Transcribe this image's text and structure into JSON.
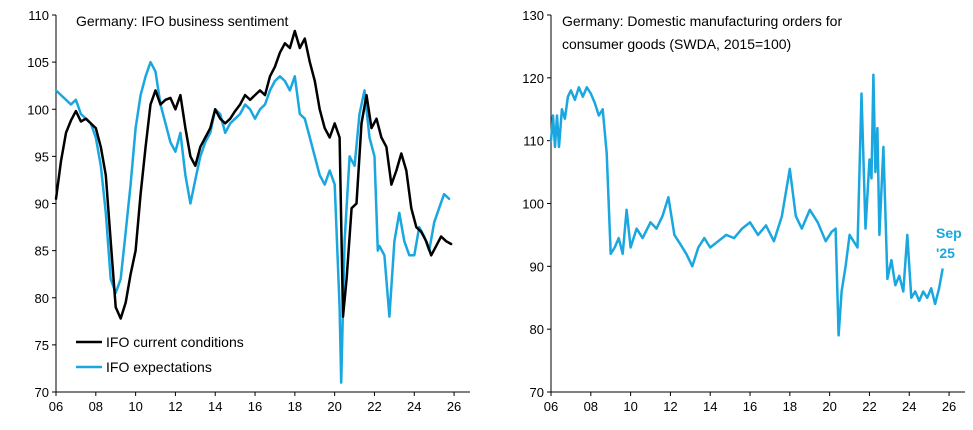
{
  "colors": {
    "black_series": "#000000",
    "blue_series": "#1aa7e0",
    "axis": "#000000"
  },
  "chart_data": [
    {
      "type": "line",
      "title": "Germany: IFO business sentiment",
      "xlabel": "",
      "ylabel": "",
      "xlim": [
        2006,
        2026.8
      ],
      "ylim": [
        70,
        110
      ],
      "x_ticks": [
        2006,
        2008,
        2010,
        2012,
        2014,
        2016,
        2018,
        2020,
        2022,
        2024,
        2026
      ],
      "x_tick_labels": [
        "06",
        "08",
        "10",
        "12",
        "14",
        "16",
        "18",
        "20",
        "22",
        "24",
        "26"
      ],
      "y_ticks": [
        70,
        75,
        80,
        85,
        90,
        95,
        100,
        105,
        110
      ],
      "y_tick_labels": [
        "70",
        "75",
        "80",
        "85",
        "90",
        "95",
        "100",
        "105",
        "110"
      ],
      "legend_position": "bottom-left",
      "series": [
        {
          "name": "IFO current conditions",
          "color": "#000000",
          "x": [
            2006.0,
            2006.25,
            2006.5,
            2006.75,
            2007.0,
            2007.25,
            2007.5,
            2007.75,
            2008.0,
            2008.25,
            2008.5,
            2008.75,
            2009.0,
            2009.25,
            2009.5,
            2009.75,
            2010.0,
            2010.25,
            2010.5,
            2010.75,
            2011.0,
            2011.25,
            2011.5,
            2011.75,
            2012.0,
            2012.25,
            2012.5,
            2012.75,
            2013.0,
            2013.25,
            2013.5,
            2013.75,
            2014.0,
            2014.25,
            2014.5,
            2014.75,
            2015.0,
            2015.25,
            2015.5,
            2015.75,
            2016.0,
            2016.25,
            2016.5,
            2016.75,
            2017.0,
            2017.25,
            2017.5,
            2017.75,
            2018.0,
            2018.25,
            2018.5,
            2018.75,
            2019.0,
            2019.25,
            2019.5,
            2019.75,
            2020.0,
            2020.25,
            2020.42,
            2020.6,
            2020.85,
            2021.1,
            2021.35,
            2021.6,
            2021.85,
            2022.1,
            2022.35,
            2022.6,
            2022.85,
            2023.1,
            2023.35,
            2023.6,
            2023.85,
            2024.1,
            2024.35,
            2024.6,
            2024.85,
            2025.1,
            2025.35,
            2025.6,
            2025.85
          ],
          "values": [
            90.5,
            94.5,
            97.5,
            98.8,
            99.8,
            98.7,
            99.0,
            98.5,
            98.0,
            96.0,
            93.0,
            86.0,
            79.0,
            77.8,
            79.5,
            82.5,
            85.0,
            91.0,
            96.0,
            100.5,
            102.0,
            100.5,
            101.0,
            101.2,
            100.0,
            101.5,
            98.0,
            95.0,
            94.0,
            96.0,
            97.0,
            98.0,
            100.0,
            99.0,
            98.5,
            99.0,
            99.8,
            100.5,
            101.5,
            101.0,
            101.5,
            102.0,
            101.5,
            103.5,
            104.5,
            106.0,
            107.0,
            106.5,
            108.3,
            106.5,
            107.5,
            105.0,
            103.0,
            100.0,
            98.0,
            97.0,
            98.5,
            97.0,
            78.0,
            82.0,
            89.5,
            90.0,
            98.5,
            101.5,
            98.0,
            99.0,
            97.0,
            96.0,
            92.0,
            93.5,
            95.3,
            93.5,
            89.5,
            87.5,
            87.0,
            86.0,
            84.5,
            85.5,
            86.5,
            86.0,
            85.7
          ]
        },
        {
          "name": "IFO expectations",
          "color": "#1aa7e0",
          "x": [
            2006.0,
            2006.25,
            2006.5,
            2006.75,
            2007.0,
            2007.25,
            2007.5,
            2007.75,
            2008.0,
            2008.25,
            2008.5,
            2008.75,
            2009.0,
            2009.25,
            2009.5,
            2009.75,
            2010.0,
            2010.25,
            2010.5,
            2010.75,
            2011.0,
            2011.25,
            2011.5,
            2011.75,
            2012.0,
            2012.25,
            2012.5,
            2012.75,
            2013.0,
            2013.25,
            2013.5,
            2013.75,
            2014.0,
            2014.25,
            2014.5,
            2014.75,
            2015.0,
            2015.25,
            2015.5,
            2015.75,
            2016.0,
            2016.25,
            2016.5,
            2016.75,
            2017.0,
            2017.25,
            2017.5,
            2017.75,
            2018.0,
            2018.25,
            2018.5,
            2018.75,
            2019.0,
            2019.25,
            2019.5,
            2019.75,
            2020.0,
            2020.25,
            2020.33,
            2020.5,
            2020.75,
            2021.0,
            2021.25,
            2021.5,
            2021.75,
            2022.0,
            2022.17,
            2022.25,
            2022.5,
            2022.75,
            2023.0,
            2023.25,
            2023.5,
            2023.75,
            2024.0,
            2024.25,
            2024.5,
            2024.75,
            2025.0,
            2025.25,
            2025.5,
            2025.75
          ],
          "values": [
            102.0,
            101.5,
            101.0,
            100.5,
            101.0,
            99.5,
            99.0,
            98.5,
            97.0,
            94.0,
            89.0,
            82.0,
            80.5,
            82.0,
            87.0,
            92.0,
            98.0,
            101.5,
            103.5,
            105.0,
            104.0,
            100.5,
            98.5,
            96.5,
            95.5,
            97.5,
            93.0,
            90.0,
            92.5,
            95.0,
            96.5,
            97.5,
            100.0,
            99.5,
            97.5,
            98.5,
            99.0,
            99.5,
            100.5,
            100.0,
            99.0,
            100.0,
            100.5,
            102.0,
            103.0,
            103.5,
            103.0,
            102.0,
            103.5,
            99.5,
            99.0,
            97.0,
            95.0,
            93.0,
            92.0,
            93.5,
            92.0,
            79.0,
            71.0,
            86.0,
            95.0,
            94.0,
            99.5,
            102.0,
            97.0,
            95.0,
            85.0,
            85.5,
            84.5,
            78.0,
            86.0,
            89.0,
            86.0,
            84.5,
            84.5,
            87.5,
            86.5,
            85.0,
            88.0,
            89.5,
            91.0,
            90.5
          ]
        }
      ]
    },
    {
      "type": "line",
      "title": "Germany: Domestic manufacturing orders for consumer goods (SWDA, 2015=100)",
      "title_lines": [
        "Germany: Domestic manufacturing orders for",
        "consumer goods (SWDA, 2015=100)"
      ],
      "xlabel": "",
      "ylabel": "",
      "xlim": [
        2006,
        2026.8
      ],
      "ylim": [
        70,
        130
      ],
      "x_ticks": [
        2006,
        2008,
        2010,
        2012,
        2014,
        2016,
        2018,
        2020,
        2022,
        2024,
        2026
      ],
      "x_tick_labels": [
        "06",
        "08",
        "10",
        "12",
        "14",
        "16",
        "18",
        "20",
        "22",
        "24",
        "26"
      ],
      "y_ticks": [
        70,
        80,
        90,
        100,
        110,
        120,
        130
      ],
      "y_tick_labels": [
        "70",
        "80",
        "90",
        "100",
        "110",
        "120",
        "130"
      ],
      "annotation": {
        "lines": [
          "Sep",
          "'25"
        ],
        "color": "#1aa7e0"
      },
      "series": [
        {
          "name": "Domestic manufacturing orders for consumer goods",
          "color": "#1aa7e0",
          "x": [
            2006.0,
            2006.1,
            2006.2,
            2006.3,
            2006.4,
            2006.55,
            2006.7,
            2006.85,
            2007.0,
            2007.2,
            2007.4,
            2007.6,
            2007.8,
            2008.0,
            2008.2,
            2008.4,
            2008.6,
            2008.8,
            2009.0,
            2009.2,
            2009.4,
            2009.6,
            2009.8,
            2010.0,
            2010.3,
            2010.6,
            2011.0,
            2011.3,
            2011.6,
            2011.9,
            2012.2,
            2012.5,
            2012.8,
            2013.1,
            2013.4,
            2013.7,
            2014.0,
            2014.4,
            2014.8,
            2015.2,
            2015.6,
            2016.0,
            2016.4,
            2016.8,
            2017.2,
            2017.6,
            2018.0,
            2018.3,
            2018.6,
            2019.0,
            2019.4,
            2019.8,
            2020.1,
            2020.3,
            2020.45,
            2020.6,
            2020.8,
            2021.0,
            2021.2,
            2021.4,
            2021.6,
            2021.8,
            2022.0,
            2022.1,
            2022.2,
            2022.3,
            2022.4,
            2022.5,
            2022.7,
            2022.9,
            2023.1,
            2023.3,
            2023.5,
            2023.7,
            2023.9,
            2024.1,
            2024.3,
            2024.5,
            2024.7,
            2024.9,
            2025.1,
            2025.3,
            2025.5,
            2025.67
          ],
          "values": [
            110.0,
            114.0,
            109.0,
            114.0,
            109.0,
            115.0,
            113.5,
            117.0,
            118.0,
            116.5,
            118.5,
            117.0,
            118.5,
            117.5,
            116.0,
            114.0,
            115.0,
            108.0,
            92.0,
            93.0,
            94.5,
            92.0,
            99.0,
            93.0,
            96.0,
            94.5,
            97.0,
            96.0,
            98.0,
            101.0,
            95.0,
            93.5,
            92.0,
            90.0,
            93.0,
            94.5,
            93.0,
            94.0,
            95.0,
            94.5,
            96.0,
            97.0,
            95.0,
            96.5,
            94.0,
            98.0,
            105.5,
            98.0,
            96.0,
            99.0,
            97.0,
            94.0,
            95.5,
            96.0,
            79.0,
            86.0,
            90.0,
            95.0,
            94.0,
            93.0,
            117.5,
            96.0,
            107.0,
            104.0,
            120.5,
            105.0,
            112.0,
            95.0,
            109.0,
            88.0,
            91.0,
            87.0,
            88.5,
            86.0,
            95.0,
            85.0,
            86.0,
            84.5,
            86.0,
            85.0,
            86.5,
            84.0,
            86.5,
            89.5
          ]
        }
      ]
    }
  ]
}
